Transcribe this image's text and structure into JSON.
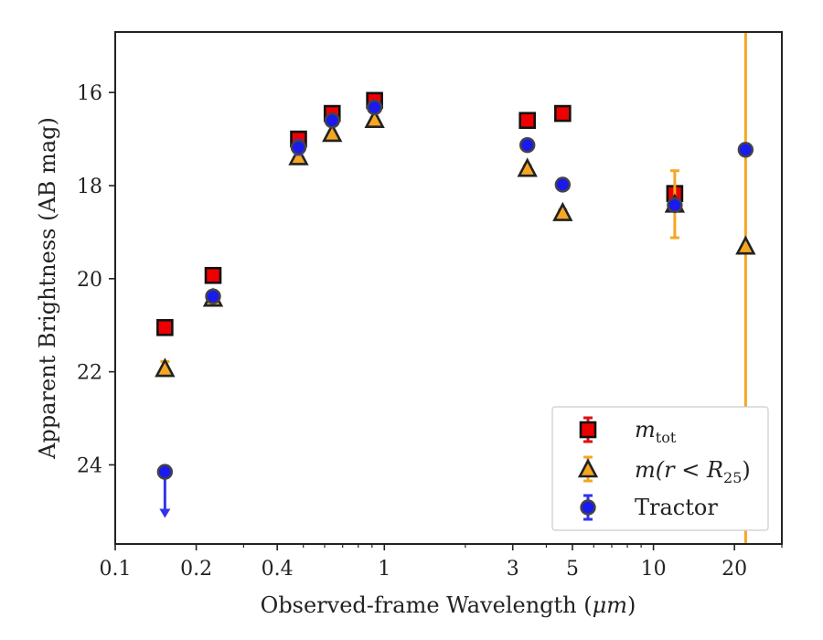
{
  "chart_data": {
    "type": "scatter",
    "xlabel_text": "Observed-frame Wavelength (",
    "xlabel_unit": "μm",
    "xlabel_close": ")",
    "ylabel": "Apparent Brightness (AB mag)",
    "xscale": "log",
    "xlim": [
      0.1,
      30
    ],
    "ylim": [
      25.7,
      14.7
    ],
    "y_inverted": true,
    "grid": false,
    "legend_position": "bottom-right",
    "x_ticks": [
      {
        "value": 0.1,
        "label": "0.1"
      },
      {
        "value": 0.2,
        "label": "0.2"
      },
      {
        "value": 0.4,
        "label": "0.4"
      },
      {
        "value": 1,
        "label": "1"
      },
      {
        "value": 3,
        "label": "3"
      },
      {
        "value": 5,
        "label": "5"
      },
      {
        "value": 10,
        "label": "10"
      },
      {
        "value": 20,
        "label": "20"
      }
    ],
    "y_ticks": [
      {
        "value": 16,
        "label": "16"
      },
      {
        "value": 18,
        "label": "18"
      },
      {
        "value": 20,
        "label": "20"
      },
      {
        "value": 22,
        "label": "22"
      },
      {
        "value": 24,
        "label": "24"
      }
    ],
    "series": [
      {
        "key": "mtot",
        "legend_main": "m",
        "legend_sub": "tot",
        "marker": "square",
        "color": "#ee0000",
        "errcolor": "#dd1111",
        "points": [
          {
            "x": 0.153,
            "y": 21.05,
            "err": 0.08
          },
          {
            "x": 0.231,
            "y": 19.93,
            "err": 0.05
          },
          {
            "x": 0.48,
            "y": 17.0,
            "err": 0.05
          },
          {
            "x": 0.64,
            "y": 16.45,
            "err": 0.04
          },
          {
            "x": 0.92,
            "y": 16.17,
            "err": 0.04
          },
          {
            "x": 3.4,
            "y": 16.6,
            "err": 0.05
          },
          {
            "x": 4.6,
            "y": 16.45,
            "err": 0.05
          },
          {
            "x": 12.0,
            "y": 18.17,
            "err": 0.1
          }
        ]
      },
      {
        "key": "mr25",
        "legend_main": "m",
        "legend_mid": "(r < R",
        "legend_sub": "25",
        "legend_end": ")",
        "marker": "triangle",
        "color": "#f5a623",
        "errcolor": "#f5a623",
        "points": [
          {
            "x": 0.153,
            "y": 21.93,
            "err": 0.15
          },
          {
            "x": 0.231,
            "y": 20.42,
            "err": 0.06
          },
          {
            "x": 0.48,
            "y": 17.38,
            "err": 0.05
          },
          {
            "x": 0.64,
            "y": 16.88,
            "err": 0.04
          },
          {
            "x": 0.92,
            "y": 16.58,
            "err": 0.04
          },
          {
            "x": 3.4,
            "y": 17.63,
            "err": 0.06
          },
          {
            "x": 4.6,
            "y": 18.58,
            "err": 0.06
          },
          {
            "x": 12.0,
            "y": 18.4,
            "err": 0.72
          },
          {
            "x": 22.0,
            "y": 19.3,
            "err": 8.0
          }
        ]
      },
      {
        "key": "tractor",
        "legend_main": "Tractor",
        "marker": "circle",
        "color": "#1a1aee",
        "errcolor": "#3333ee",
        "points": [
          {
            "x": 0.153,
            "y": 24.15,
            "upper_limit_to": 25.1
          },
          {
            "x": 0.231,
            "y": 20.38,
            "err": 0.05
          },
          {
            "x": 0.48,
            "y": 17.18,
            "err": 0.15
          },
          {
            "x": 0.64,
            "y": 16.6,
            "err": 0.05
          },
          {
            "x": 0.92,
            "y": 16.32,
            "err": 0.04
          },
          {
            "x": 3.4,
            "y": 17.13,
            "err": 0.05
          },
          {
            "x": 4.6,
            "y": 17.98,
            "err": 0.05
          },
          {
            "x": 12.0,
            "y": 18.42,
            "err": 0.1
          },
          {
            "x": 22.0,
            "y": 17.23,
            "err": 0.05
          }
        ]
      }
    ]
  }
}
